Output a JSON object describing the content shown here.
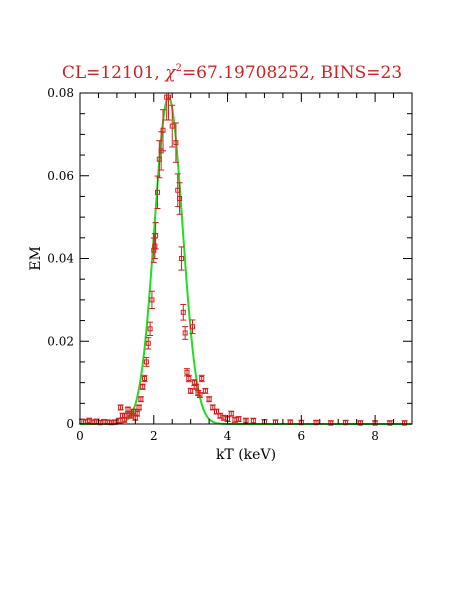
{
  "chart_data": {
    "type": "scatter",
    "title": {
      "cl_label": "CL=12101, ",
      "chi_symbol": "χ",
      "chi_sup": "2",
      "chi_value": "=67.19708252, BINS=23"
    },
    "xlabel": "kT (keV)",
    "ylabel": "EM",
    "xlim": [
      0,
      9
    ],
    "ylim": [
      0,
      0.08
    ],
    "x_ticks": [
      "0",
      "2",
      "4",
      "6",
      "8"
    ],
    "y_ticks": [
      "0",
      "0.02",
      "0.04",
      "0.06",
      "0.08"
    ],
    "colors": {
      "data": "#d42020",
      "model": "#22dd22",
      "axes": "#000000"
    },
    "series": [
      {
        "kind": "points",
        "points": [
          [
            0.05,
            0.0006
          ],
          [
            0.15,
            0.0005
          ],
          [
            0.25,
            0.0008
          ],
          [
            0.35,
            0.0004
          ],
          [
            0.45,
            0.0006
          ],
          [
            0.55,
            0.0003
          ],
          [
            0.65,
            0.0005
          ],
          [
            0.75,
            0.0004
          ],
          [
            0.85,
            0.0003
          ],
          [
            0.95,
            0.0004
          ],
          [
            1.05,
            0.0008
          ],
          [
            1.1,
            0.004
          ],
          [
            1.15,
            0.002
          ],
          [
            1.2,
            0.001
          ],
          [
            1.25,
            0.002
          ],
          [
            1.3,
            0.0035
          ],
          [
            1.35,
            0.0025
          ],
          [
            1.4,
            0.002
          ],
          [
            1.45,
            0.003
          ],
          [
            1.5,
            0.0015
          ],
          [
            1.55,
            0.0025
          ],
          [
            1.6,
            0.004
          ],
          [
            1.65,
            0.006
          ],
          [
            1.7,
            0.009
          ],
          [
            1.75,
            0.011
          ],
          [
            1.8,
            0.015
          ],
          [
            1.85,
            0.0195
          ],
          [
            1.9,
            0.023
          ],
          [
            1.95,
            0.03
          ],
          [
            2.0,
            0.042
          ],
          [
            2.03,
            0.043
          ],
          [
            2.05,
            0.0455
          ],
          [
            2.1,
            0.056
          ],
          [
            2.15,
            0.064
          ],
          [
            2.2,
            0.066
          ],
          [
            2.25,
            0.071
          ],
          [
            2.35,
            0.079
          ],
          [
            2.4,
            0.079
          ],
          [
            2.5,
            0.072
          ],
          [
            2.6,
            0.068
          ],
          [
            2.65,
            0.0565
          ],
          [
            2.7,
            0.0545
          ],
          [
            2.75,
            0.04
          ],
          [
            2.8,
            0.027
          ],
          [
            2.85,
            0.022
          ],
          [
            2.9,
            0.0125
          ],
          [
            2.95,
            0.011
          ],
          [
            3.0,
            0.008
          ],
          [
            3.05,
            0.0235
          ],
          [
            3.1,
            0.01
          ],
          [
            3.15,
            0.009
          ],
          [
            3.2,
            0.0075
          ],
          [
            3.25,
            0.007
          ],
          [
            3.3,
            0.011
          ],
          [
            3.4,
            0.008
          ],
          [
            3.5,
            0.006
          ],
          [
            3.6,
            0.004
          ],
          [
            3.7,
            0.003
          ],
          [
            3.8,
            0.002
          ],
          [
            3.9,
            0.0015
          ],
          [
            4.0,
            0.0012
          ],
          [
            4.1,
            0.0025
          ],
          [
            4.2,
            0.001
          ],
          [
            4.3,
            0.0012
          ],
          [
            4.5,
            0.0008
          ],
          [
            4.7,
            0.0008
          ],
          [
            5.0,
            0.0005
          ],
          [
            5.3,
            0.0004
          ],
          [
            5.7,
            0.0004
          ],
          [
            6.0,
            0.0003
          ],
          [
            6.4,
            0.0003
          ],
          [
            6.8,
            0.0002
          ],
          [
            7.2,
            0.0003
          ],
          [
            7.6,
            0.0002
          ],
          [
            8.0,
            0.0002
          ],
          [
            8.4,
            0.0002
          ],
          [
            8.8,
            0.0002
          ]
        ]
      },
      {
        "kind": "gaussian_model",
        "amplitude": 0.079,
        "center": 2.4,
        "sigma": 0.38
      }
    ]
  }
}
